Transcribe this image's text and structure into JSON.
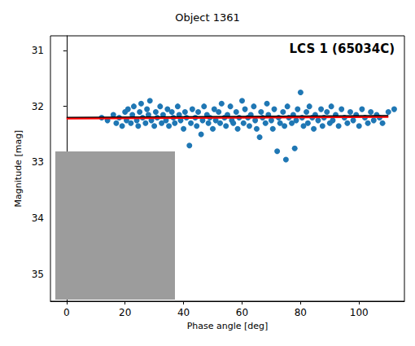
{
  "chart_data": {
    "type": "scatter",
    "title": "Object 1361",
    "annotation": "LCS 1 (65034C)",
    "x_label": "Phase angle [deg]",
    "y_label": "Magnitude [mag]",
    "xlim": [
      -5.5,
      115.5
    ],
    "xticks": [
      0,
      20,
      40,
      60,
      80,
      100
    ],
    "ylim": [
      30.74,
      35.48
    ],
    "yticks": [
      31,
      32,
      33,
      34,
      35
    ],
    "y_inverted": true,
    "grid": false,
    "series": [
      {
        "type": "scatter",
        "color": "#1f77b4",
        "marker": "circle",
        "x": [
          12,
          14,
          16,
          17,
          18,
          19,
          20,
          20.5,
          21,
          22,
          22.5,
          23,
          24,
          24.5,
          25,
          25.5,
          26,
          27,
          27.5,
          28,
          28.5,
          29,
          30,
          30.5,
          31,
          32,
          32.5,
          33,
          34,
          34.5,
          35,
          36,
          36.5,
          37,
          38,
          38.5,
          39,
          40,
          40.5,
          41,
          42,
          42.5,
          43,
          44,
          44.5,
          45,
          46,
          46.5,
          47,
          48,
          48.5,
          49,
          50,
          50.5,
          51,
          52,
          52.5,
          53,
          54,
          54.5,
          55,
          56,
          56.5,
          57,
          58,
          58.5,
          59,
          60,
          60.5,
          61,
          62,
          62.5,
          63,
          64,
          64.5,
          65,
          66,
          66.5,
          67,
          68,
          68.5,
          69,
          70,
          70.5,
          71,
          72,
          72.5,
          73,
          74,
          74.5,
          75,
          75.5,
          76,
          77,
          77.5,
          78,
          78.5,
          79,
          80,
          80.5,
          81,
          82,
          82.5,
          83,
          84,
          84.5,
          85,
          86,
          87,
          87.5,
          88,
          89,
          90,
          90.5,
          91,
          92,
          93,
          94,
          95,
          96,
          97,
          98,
          99,
          100,
          101,
          102,
          103,
          104,
          105,
          106,
          107,
          108,
          110,
          112
        ],
        "values": [
          32.2,
          32.25,
          32.15,
          32.3,
          32.2,
          32.35,
          32.1,
          32.25,
          32.05,
          32.3,
          32.15,
          32.0,
          32.25,
          32.35,
          32.1,
          31.95,
          32.2,
          32.3,
          32.05,
          32.15,
          31.9,
          32.25,
          32.35,
          32.1,
          32.2,
          32.0,
          32.3,
          32.15,
          32.25,
          32.05,
          32.35,
          32.1,
          32.2,
          32.3,
          32.0,
          32.15,
          32.25,
          32.4,
          32.1,
          32.2,
          32.7,
          32.3,
          32.05,
          32.2,
          32.35,
          32.1,
          32.5,
          32.25,
          32.0,
          32.15,
          32.3,
          32.2,
          32.4,
          32.05,
          32.25,
          32.1,
          32.3,
          31.95,
          32.2,
          32.35,
          32.15,
          32.0,
          32.25,
          32.3,
          32.1,
          32.4,
          32.2,
          31.9,
          32.3,
          32.05,
          32.2,
          32.35,
          32.15,
          32.0,
          32.25,
          32.4,
          32.55,
          32.1,
          32.2,
          32.3,
          31.95,
          32.15,
          32.25,
          32.4,
          32.05,
          32.8,
          32.2,
          32.3,
          32.1,
          32.35,
          32.95,
          32.0,
          32.2,
          32.3,
          32.15,
          32.75,
          32.25,
          32.05,
          31.75,
          32.2,
          32.35,
          32.1,
          32.3,
          32.0,
          32.2,
          32.4,
          32.15,
          32.25,
          32.05,
          32.35,
          32.2,
          32.1,
          32.3,
          32.0,
          32.25,
          32.15,
          32.35,
          32.05,
          32.2,
          32.3,
          32.1,
          32.25,
          32.15,
          32.35,
          32.05,
          32.2,
          32.3,
          32.1,
          32.25,
          32.15,
          32.2,
          32.3,
          32.1,
          32.05
        ]
      },
      {
        "type": "line",
        "color": "#000000",
        "line_style": "solid",
        "x": [
          0,
          110
        ],
        "values": [
          32.2,
          32.17
        ]
      },
      {
        "type": "line",
        "color": "#ff0000",
        "line_style": "solid",
        "x": [
          0,
          110
        ],
        "values": [
          32.22,
          32.19
        ]
      }
    ]
  }
}
